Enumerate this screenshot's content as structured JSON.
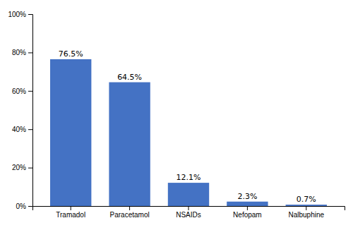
{
  "chart_data": {
    "type": "bar",
    "categories": [
      "Tramadol",
      "Paracetamol",
      "NSAIDs",
      "Nefopam",
      "Nalbuphine"
    ],
    "values": [
      76.5,
      64.5,
      12.1,
      2.3,
      0.7
    ],
    "value_labels": [
      "76.5%",
      "64.5%",
      "12.1%",
      "2.3%",
      "0.7%"
    ],
    "color": "#4472C4",
    "ylim": [
      0,
      100
    ],
    "yticks": [
      {
        "value": 0,
        "label": "0%"
      },
      {
        "value": 20,
        "label": "20%"
      },
      {
        "value": 40,
        "label": "40%"
      },
      {
        "value": 60,
        "label": "60%"
      },
      {
        "value": 80,
        "label": "80%"
      },
      {
        "value": 100,
        "label": "100%"
      }
    ],
    "grid": false,
    "data_labels": true
  }
}
